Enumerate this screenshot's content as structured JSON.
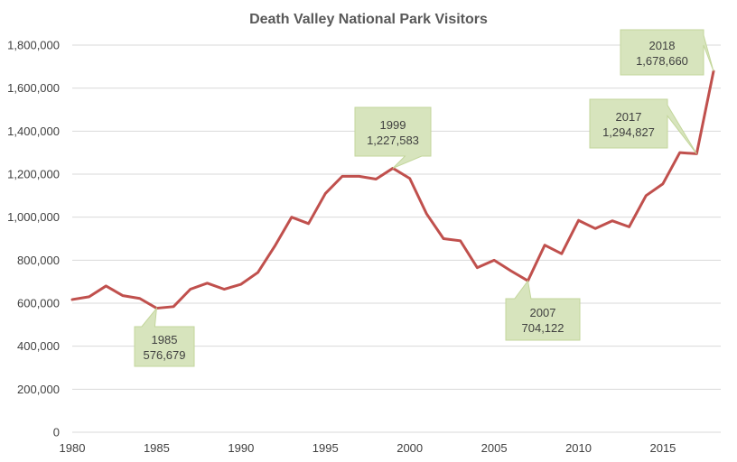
{
  "chart_data": {
    "type": "line",
    "title": "Death Valley National Park Visitors",
    "xlabel": "",
    "ylabel": "",
    "xlim": [
      1980,
      2018
    ],
    "ylim": [
      0,
      1800000
    ],
    "grid": true,
    "legend": "none",
    "y_ticks": [
      "0",
      "200,000",
      "400,000",
      "600,000",
      "800,000",
      "1,000,000",
      "1,200,000",
      "1,400,000",
      "1,600,000",
      "1,800,000"
    ],
    "y_tick_values": [
      0,
      200000,
      400000,
      600000,
      800000,
      1000000,
      1200000,
      1400000,
      1600000,
      1800000
    ],
    "x_ticks": [
      "1980",
      "1985",
      "1990",
      "1995",
      "2000",
      "2005",
      "2010",
      "2015"
    ],
    "x_tick_values": [
      1980,
      1985,
      1990,
      1995,
      2000,
      2005,
      2010,
      2015
    ],
    "series": [
      {
        "color": "#c0504d",
        "x": [
          1980,
          1981,
          1982,
          1983,
          1984,
          1985,
          1986,
          1987,
          1988,
          1989,
          1990,
          1991,
          1992,
          1993,
          1994,
          1995,
          1996,
          1997,
          1998,
          1999,
          2000,
          2001,
          2002,
          2003,
          2004,
          2005,
          2006,
          2007,
          2008,
          2009,
          2010,
          2011,
          2012,
          2013,
          2014,
          2015,
          2016,
          2017,
          2018
        ],
        "values": [
          617000,
          630000,
          680000,
          635000,
          622000,
          576679,
          584000,
          665000,
          693000,
          665000,
          688000,
          743000,
          865000,
          1000000,
          970000,
          1110000,
          1190000,
          1190000,
          1177000,
          1227583,
          1180000,
          1015000,
          900000,
          890000,
          765000,
          800000,
          750000,
          704122,
          870000,
          830000,
          985000,
          947000,
          983000,
          955000,
          1100000,
          1155000,
          1300000,
          1294827,
          1678660
        ]
      }
    ],
    "annotations": [
      {
        "year": "1985",
        "value": "576,679",
        "x": 1985,
        "y": 576679
      },
      {
        "year": "1999",
        "value": "1,227,583",
        "x": 1999,
        "y": 1227583
      },
      {
        "year": "2007",
        "value": "704,122",
        "x": 2007,
        "y": 704122
      },
      {
        "year": "2017",
        "value": "1,294,827",
        "x": 2017,
        "y": 1294827
      },
      {
        "year": "2018",
        "value": "1,678,660",
        "x": 2018,
        "y": 1678660
      }
    ]
  }
}
